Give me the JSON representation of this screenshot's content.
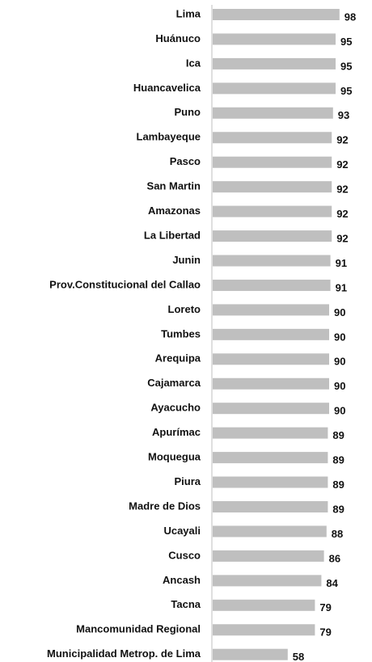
{
  "chart_data": {
    "type": "barh",
    "categories": [
      "Lima",
      "Huánuco",
      "Ica",
      "Huancavelica",
      "Puno",
      "Lambayeque",
      "Pasco",
      "San Martin",
      "Amazonas",
      "La Libertad",
      "Junin",
      "Prov.Constitucional del Callao",
      "Loreto",
      "Tumbes",
      "Arequipa",
      "Cajamarca",
      "Ayacucho",
      "Apurímac",
      "Moquegua",
      "Piura",
      "Madre de Dios",
      "Ucayali",
      "Cusco",
      "Ancash",
      "Tacna",
      "Mancomunidad Regional",
      "Municipalidad Metrop. de Lima"
    ],
    "values": [
      98,
      95,
      95,
      95,
      93,
      92,
      92,
      92,
      92,
      92,
      91,
      91,
      90,
      90,
      90,
      90,
      90,
      89,
      89,
      89,
      89,
      88,
      86,
      84,
      79,
      79,
      58
    ],
    "color": "#bfbfbf",
    "xlim": [
      0,
      100
    ]
  }
}
